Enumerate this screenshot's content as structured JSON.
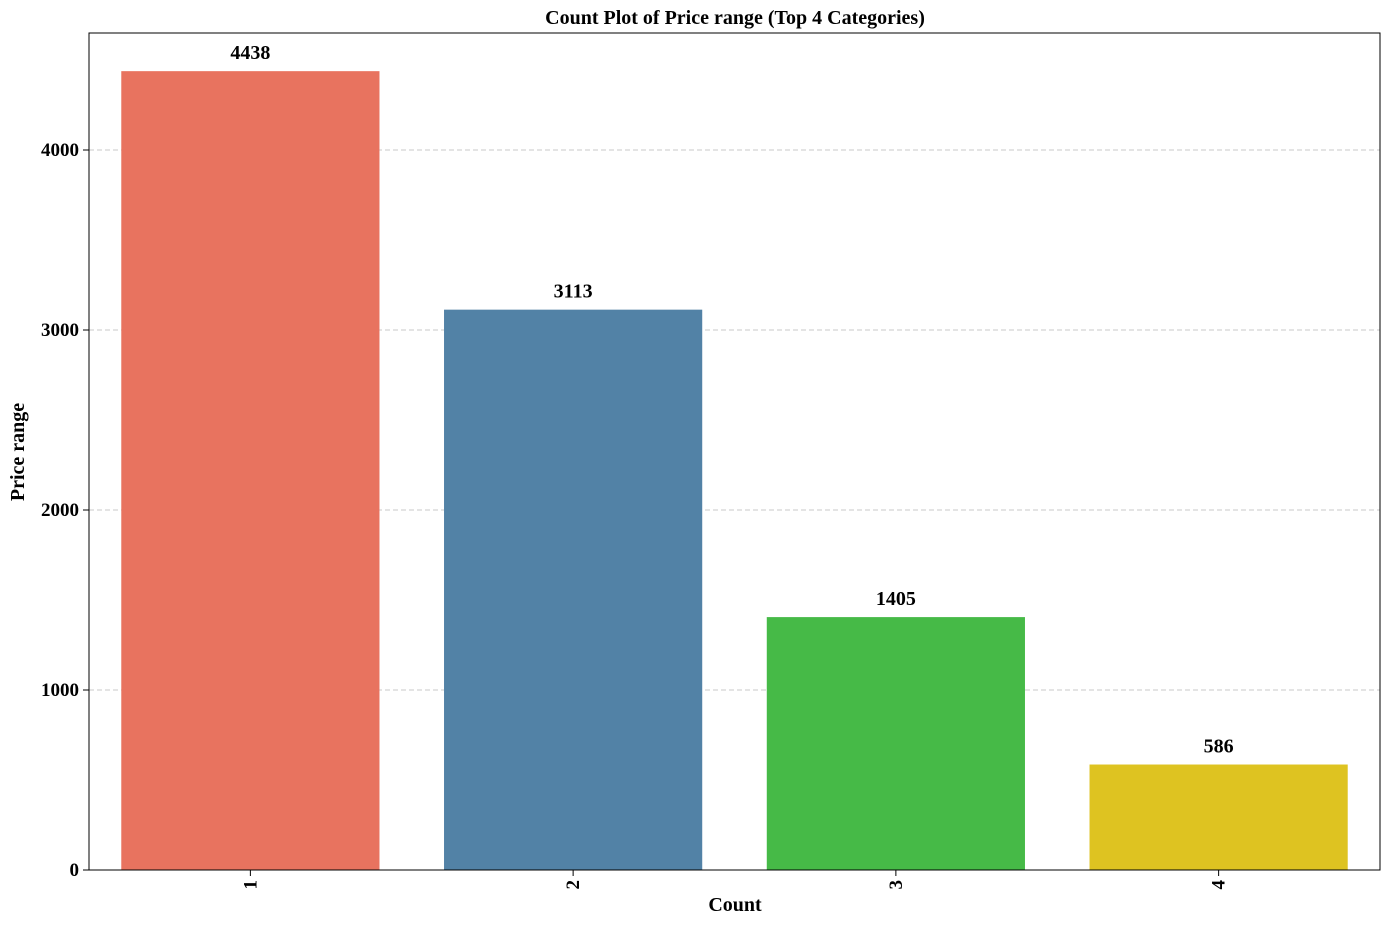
{
  "chart_data": {
    "type": "bar",
    "title": "Count Plot of Price range (Top 4 Categories)",
    "xlabel": "Count",
    "ylabel": "Price range",
    "categories": [
      "1",
      "2",
      "3",
      "4"
    ],
    "values": [
      4438,
      3113,
      1405,
      586
    ],
    "data_labels": [
      "4438",
      "3113",
      "1405",
      "586"
    ],
    "colors": [
      "#e8735f",
      "#5282a6",
      "#46ba47",
      "#dec321"
    ],
    "ylim": [
      0,
      4650
    ],
    "yticks": [
      0,
      1000,
      2000,
      3000,
      4000
    ],
    "ytick_labels": [
      "0",
      "1000",
      "2000",
      "3000",
      "4000"
    ],
    "grid": true,
    "x_tick_rotation": "vertical"
  }
}
